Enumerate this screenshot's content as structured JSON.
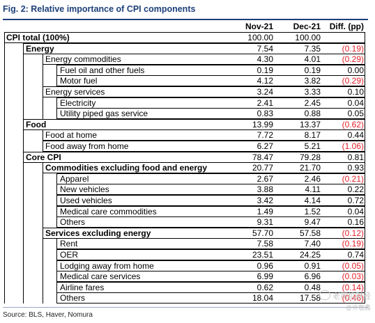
{
  "title": "Fig. 2: Relative importance of CPI components",
  "columns": [
    "Nov-21",
    "Dec-21",
    "Diff. (pp)"
  ],
  "rows": [
    {
      "label": "CPI total (100%)",
      "level": 0,
      "bold": true,
      "nov": "100.00",
      "dec": "100.00",
      "diff": "",
      "diff_negative": false
    },
    {
      "label": "Energy",
      "level": 1,
      "bold": true,
      "nov": "7.54",
      "dec": "7.35",
      "diff": "(0.19)",
      "diff_negative": true
    },
    {
      "label": "Energy commodities",
      "level": 2,
      "bold": false,
      "nov": "4.30",
      "dec": "4.01",
      "diff": "(0.29)",
      "diff_negative": true
    },
    {
      "label": "Fuel oil and other fuels",
      "level": 3,
      "bold": false,
      "nov": "0.19",
      "dec": "0.19",
      "diff": "0.00",
      "diff_negative": false
    },
    {
      "label": "Motor fuel",
      "level": 3,
      "bold": false,
      "nov": "4.12",
      "dec": "3.82",
      "diff": "(0.29)",
      "diff_negative": true
    },
    {
      "label": "Energy services",
      "level": 2,
      "bold": false,
      "nov": "3.24",
      "dec": "3.33",
      "diff": "0.10",
      "diff_negative": false
    },
    {
      "label": "Electricity",
      "level": 3,
      "bold": false,
      "nov": "2.41",
      "dec": "2.45",
      "diff": "0.04",
      "diff_negative": false
    },
    {
      "label": "Utility piped gas service",
      "level": 3,
      "bold": false,
      "nov": "0.83",
      "dec": "0.88",
      "diff": "0.05",
      "diff_negative": false
    },
    {
      "label": "Food",
      "level": 1,
      "bold": true,
      "nov": "13.99",
      "dec": "13.37",
      "diff": "(0.62)",
      "diff_negative": true
    },
    {
      "label": "Food at home",
      "level": 2,
      "bold": false,
      "nov": "7.72",
      "dec": "8.17",
      "diff": "0.44",
      "diff_negative": false
    },
    {
      "label": "Food away from home",
      "level": 2,
      "bold": false,
      "nov": "6.27",
      "dec": "5.21",
      "diff": "(1.06)",
      "diff_negative": true
    },
    {
      "label": "Core CPI",
      "level": 1,
      "bold": true,
      "nov": "78.47",
      "dec": "79.28",
      "diff": "0.81",
      "diff_negative": false
    },
    {
      "label": "Commodities excluding food and energy",
      "level": 2,
      "bold": true,
      "nov": "20.77",
      "dec": "21.70",
      "diff": "0.93",
      "diff_negative": false
    },
    {
      "label": "Apparel",
      "level": 3,
      "bold": false,
      "nov": "2.67",
      "dec": "2.46",
      "diff": "(0.21)",
      "diff_negative": true
    },
    {
      "label": "New vehicles",
      "level": 3,
      "bold": false,
      "nov": "3.88",
      "dec": "4.11",
      "diff": "0.22",
      "diff_negative": false
    },
    {
      "label": "Used vehicles",
      "level": 3,
      "bold": false,
      "nov": "3.42",
      "dec": "4.14",
      "diff": "0.72",
      "diff_negative": false
    },
    {
      "label": "Medical care commodities",
      "level": 3,
      "bold": false,
      "nov": "1.49",
      "dec": "1.52",
      "diff": "0.04",
      "diff_negative": false
    },
    {
      "label": "Others",
      "level": 3,
      "bold": false,
      "nov": "9.31",
      "dec": "9.47",
      "diff": "0.16",
      "diff_negative": false
    },
    {
      "label": "Services excluding energy",
      "level": 2,
      "bold": true,
      "nov": "57.70",
      "dec": "57.58",
      "diff": "(0.12)",
      "diff_negative": true
    },
    {
      "label": "Rent",
      "level": 3,
      "bold": false,
      "nov": "7.58",
      "dec": "7.40",
      "diff": "(0.19)",
      "diff_negative": true
    },
    {
      "label": "OER",
      "level": 3,
      "bold": false,
      "nov": "23.51",
      "dec": "24.25",
      "diff": "0.74",
      "diff_negative": false
    },
    {
      "label": "Lodging away from home",
      "level": 3,
      "bold": false,
      "nov": "0.96",
      "dec": "0.91",
      "diff": "(0.05)",
      "diff_negative": true
    },
    {
      "label": "Medical care services",
      "level": 3,
      "bold": false,
      "nov": "6.99",
      "dec": "6.96",
      "diff": "(0.03)",
      "diff_negative": true
    },
    {
      "label": "Airline fares",
      "level": 3,
      "bold": false,
      "nov": "0.62",
      "dec": "0.48",
      "diff": "(0.14)",
      "diff_negative": true
    },
    {
      "label": "Others",
      "level": 3,
      "bold": false,
      "nov": "18.04",
      "dec": "17.58",
      "diff": "(0.46)",
      "diff_negative": true
    }
  ],
  "source": "Source: BLS, Haver, Nomura",
  "watermark": {
    "main": "老司机财经",
    "sub": "@许敬鑫"
  },
  "colors": {
    "title": "#1d3f7a",
    "negative": "#e3202a"
  }
}
